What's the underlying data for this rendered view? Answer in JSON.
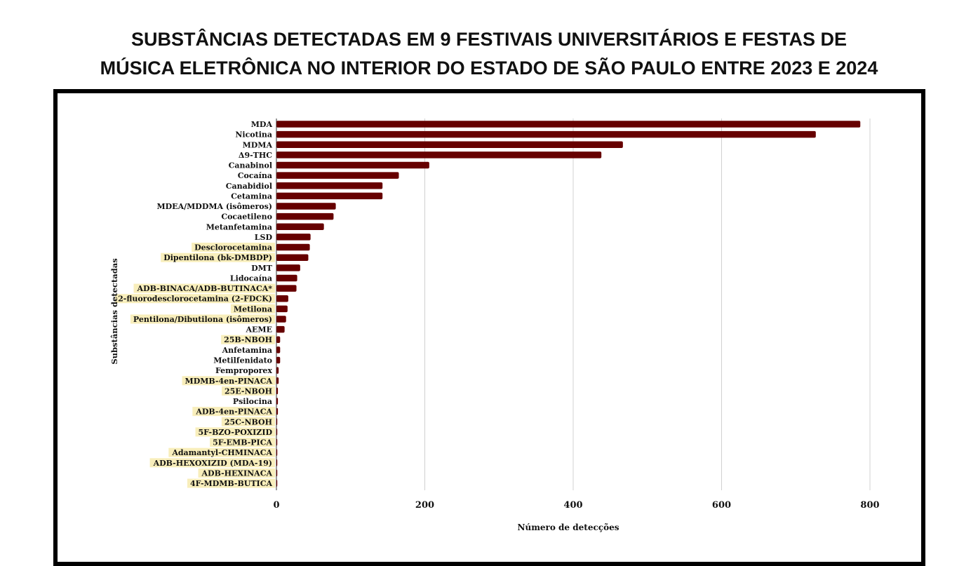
{
  "title": {
    "line1": "SUBSTÂNCIAS DETECTADAS EM 9 FESTIVAIS UNIVERSITÁRIOS E FESTAS DE",
    "line2": "MÚSICA ELETRÔNICA NO INTERIOR DO ESTADO DE SÃO PAULO ENTRE 2023 E 2024"
  },
  "colors": {
    "bar": "#660000",
    "highlight": "#f8eebb",
    "grid": "#d0d0d0",
    "text": "#111111"
  },
  "chart_data": {
    "type": "bar",
    "orientation": "horizontal",
    "xlabel": "Número de detecções",
    "ylabel": "Substâncias detectadas",
    "xlim": [
      0,
      800
    ],
    "xticks": [
      0,
      200,
      400,
      600,
      800
    ],
    "grid": "vertical",
    "categories": [
      "MDA",
      "Nicotina",
      "MDMA",
      "Δ9-THC",
      "Canabinol",
      "Cocaína",
      "Canabidiol",
      "Cetamina",
      "MDEA/MDDMA (isômeros)",
      "Cocaetileno",
      "Metanfetamina",
      "LSD",
      "Desclorocetamina",
      "Dipentilona (bk-DMBDP)",
      "DMT",
      "Lidocaína",
      "ADB-BINACA/ADB-BUTINACA*",
      "2-fluorodesclorocetamina (2-FDCK)",
      "Metilona",
      "Pentilona/Dibutilona (isômeros)",
      "AEME",
      "25B-NBOH",
      "Anfetamina",
      "Metilfenidato",
      "Femproporex",
      "MDMB-4en-PINACA",
      "25E-NBOH",
      "Psilocina",
      "ADB-4en-PINACA",
      "25C-NBOH",
      "5F-BZO-POXIZID",
      "5F-EMB-PICA",
      "Adamantyl-CHMINACA",
      "ADB-HEXOXIZID (MDA-19)",
      "ADB-HEXINACA",
      "4F-MDMB-BUTICA"
    ],
    "values": [
      787,
      727,
      467,
      438,
      206,
      165,
      143,
      143,
      80,
      77,
      64,
      46,
      45,
      43,
      32,
      28,
      27,
      16,
      15,
      13,
      11,
      5,
      5,
      5,
      3,
      3,
      2,
      2,
      2,
      1,
      1,
      1,
      1,
      1,
      1,
      1
    ],
    "highlighted": [
      "Desclorocetamina",
      "Dipentilona (bk-DMBDP)",
      "ADB-BINACA/ADB-BUTINACA*",
      "2-fluorodesclorocetamina (2-FDCK)",
      "Metilona",
      "Pentilona/Dibutilona (isômeros)",
      "25B-NBOH",
      "MDMB-4en-PINACA",
      "25E-NBOH",
      "ADB-4en-PINACA",
      "25C-NBOH",
      "5F-BZO-POXIZID",
      "5F-EMB-PICA",
      "Adamantyl-CHMINACA",
      "ADB-HEXOXIZID (MDA-19)",
      "ADB-HEXINACA",
      "4F-MDMB-BUTICA"
    ]
  }
}
